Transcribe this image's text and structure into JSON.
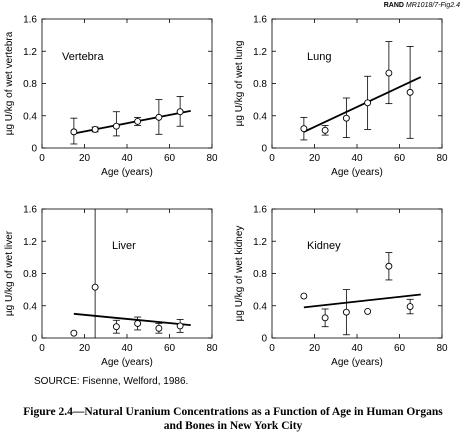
{
  "header": {
    "publisher": "RAND",
    "document_ref": "MR1018/7-Fig2.4"
  },
  "chart_data": [
    {
      "type": "scatter",
      "panel_label": "Vertebra",
      "xlabel": "Age (years)",
      "ylabel": "µg U/kg of wet vertebra",
      "xlim": [
        0,
        80
      ],
      "ylim": [
        0,
        1.6
      ],
      "xticks": [
        "0",
        "20",
        "40",
        "60",
        "80"
      ],
      "yticks": [
        "0",
        "0.4",
        "0.8",
        "1.2",
        "1.6"
      ],
      "points": [
        {
          "x": 15,
          "y": 0.2,
          "err_low": 0.05,
          "err_high": 0.37
        },
        {
          "x": 25,
          "y": 0.23,
          "err_low": 0.2,
          "err_high": 0.26
        },
        {
          "x": 35,
          "y": 0.27,
          "err_low": 0.15,
          "err_high": 0.45
        },
        {
          "x": 45,
          "y": 0.33,
          "err_low": 0.28,
          "err_high": 0.38
        },
        {
          "x": 55,
          "y": 0.38,
          "err_low": 0.17,
          "err_high": 0.6
        },
        {
          "x": 65,
          "y": 0.45,
          "err_low": 0.27,
          "err_high": 0.64
        }
      ],
      "trend_line": {
        "x": [
          15,
          70
        ],
        "y": [
          0.18,
          0.46
        ]
      }
    },
    {
      "type": "scatter",
      "panel_label": "Lung",
      "xlabel": "Age (years)",
      "ylabel": "µg U/kg of wet lung",
      "xlim": [
        0,
        80
      ],
      "ylim": [
        0,
        1.6
      ],
      "xticks": [
        "0",
        "20",
        "40",
        "60",
        "80"
      ],
      "yticks": [
        "0",
        "0.4",
        "0.8",
        "1.2",
        "1.6"
      ],
      "points": [
        {
          "x": 15,
          "y": 0.24,
          "err_low": 0.1,
          "err_high": 0.38
        },
        {
          "x": 25,
          "y": 0.22,
          "err_low": 0.16,
          "err_high": 0.28
        },
        {
          "x": 35,
          "y": 0.37,
          "err_low": 0.13,
          "err_high": 0.62
        },
        {
          "x": 45,
          "y": 0.56,
          "err_low": 0.23,
          "err_high": 0.89
        },
        {
          "x": 55,
          "y": 0.93,
          "err_low": 0.55,
          "err_high": 1.32
        },
        {
          "x": 65,
          "y": 0.69,
          "err_low": 0.12,
          "err_high": 1.26
        }
      ],
      "trend_line": {
        "x": [
          15,
          70
        ],
        "y": [
          0.2,
          0.88
        ]
      }
    },
    {
      "type": "scatter",
      "panel_label": "Liver",
      "xlabel": "Age (years)",
      "ylabel": "µg U/kg of wet liver",
      "xlim": [
        0,
        80
      ],
      "ylim": [
        0,
        1.6
      ],
      "xticks": [
        "0",
        "20",
        "40",
        "60",
        "80"
      ],
      "yticks": [
        "0",
        "0.4",
        "0.8",
        "1.2",
        "1.6"
      ],
      "points": [
        {
          "x": 15,
          "y": 0.06,
          "err_low": 0.06,
          "err_high": 0.06
        },
        {
          "x": 25,
          "y": 0.63,
          "err_low": 0.0,
          "err_high": 1.6
        },
        {
          "x": 35,
          "y": 0.14,
          "err_low": 0.06,
          "err_high": 0.22
        },
        {
          "x": 45,
          "y": 0.18,
          "err_low": 0.1,
          "err_high": 0.26
        },
        {
          "x": 55,
          "y": 0.12,
          "err_low": 0.06,
          "err_high": 0.18
        },
        {
          "x": 65,
          "y": 0.15,
          "err_low": 0.07,
          "err_high": 0.23
        }
      ],
      "trend_line": {
        "x": [
          15,
          70
        ],
        "y": [
          0.3,
          0.16
        ]
      }
    },
    {
      "type": "scatter",
      "panel_label": "Kidney",
      "xlabel": "Age (years)",
      "ylabel": "µg U/kg of wet kidney",
      "xlim": [
        0,
        80
      ],
      "ylim": [
        0,
        1.6
      ],
      "xticks": [
        "0",
        "20",
        "40",
        "60",
        "80"
      ],
      "yticks": [
        "0",
        "0.4",
        "0.8",
        "1.2",
        "1.6"
      ],
      "points": [
        {
          "x": 15,
          "y": 0.52,
          "err_low": 0.52,
          "err_high": 0.52
        },
        {
          "x": 25,
          "y": 0.25,
          "err_low": 0.14,
          "err_high": 0.36
        },
        {
          "x": 35,
          "y": 0.32,
          "err_low": 0.04,
          "err_high": 0.6
        },
        {
          "x": 45,
          "y": 0.33,
          "err_low": 0.33,
          "err_high": 0.33
        },
        {
          "x": 55,
          "y": 0.89,
          "err_low": 0.72,
          "err_high": 1.06
        },
        {
          "x": 65,
          "y": 0.39,
          "err_low": 0.3,
          "err_high": 0.48
        }
      ],
      "trend_line": {
        "x": [
          15,
          70
        ],
        "y": [
          0.38,
          0.54
        ]
      }
    }
  ],
  "source_note": "SOURCE:  Fisenne, Welford, 1986.",
  "caption": {
    "line1": "Figure 2.4—Natural Uranium Concentrations as a Function of Age in Human Organs",
    "line2": "and Bones in New York City"
  }
}
